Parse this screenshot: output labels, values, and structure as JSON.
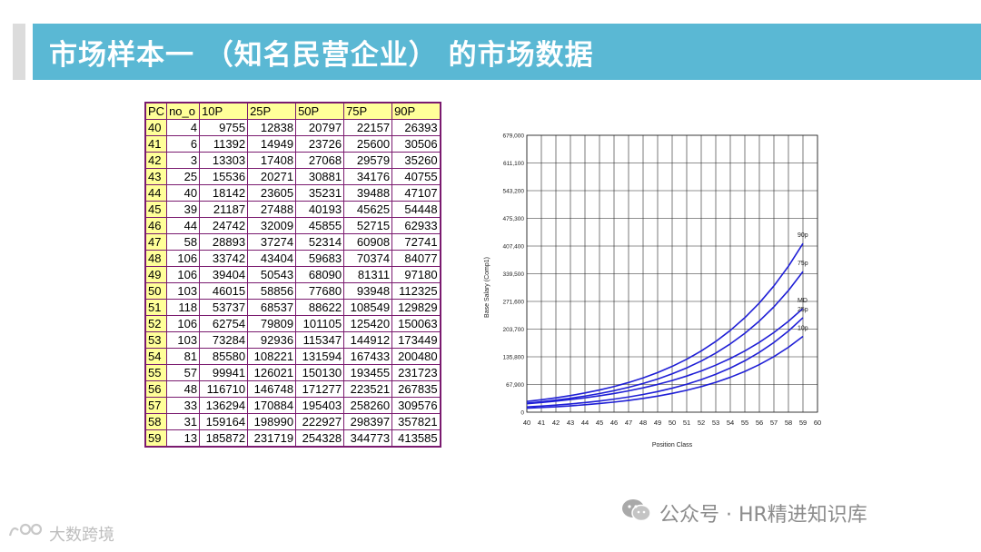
{
  "slide": {
    "title": "市场样本一 （知名民营企业） 的市场数据"
  },
  "table": {
    "headers": [
      "PC",
      "no_o",
      "10P",
      "25P",
      "50P",
      "75P",
      "90P"
    ],
    "rows": [
      [
        "40",
        "4",
        "9755",
        "12838",
        "20797",
        "22157",
        "26393"
      ],
      [
        "41",
        "6",
        "11392",
        "14949",
        "23726",
        "25600",
        "30506"
      ],
      [
        "42",
        "3",
        "13303",
        "17408",
        "27068",
        "29579",
        "35260"
      ],
      [
        "43",
        "25",
        "15536",
        "20271",
        "30881",
        "34176",
        "40755"
      ],
      [
        "44",
        "40",
        "18142",
        "23605",
        "35231",
        "39488",
        "47107"
      ],
      [
        "45",
        "39",
        "21187",
        "27488",
        "40193",
        "45625",
        "54448"
      ],
      [
        "46",
        "44",
        "24742",
        "32009",
        "45855",
        "52715",
        "62933"
      ],
      [
        "47",
        "58",
        "28893",
        "37274",
        "52314",
        "60908",
        "72741"
      ],
      [
        "48",
        "106",
        "33742",
        "43404",
        "59683",
        "70374",
        "84077"
      ],
      [
        "49",
        "106",
        "39404",
        "50543",
        "68090",
        "81311",
        "97180"
      ],
      [
        "50",
        "103",
        "46015",
        "58856",
        "77680",
        "93948",
        "112325"
      ],
      [
        "51",
        "118",
        "53737",
        "68537",
        "88622",
        "108549",
        "129829"
      ],
      [
        "52",
        "106",
        "62754",
        "79809",
        "101105",
        "125420",
        "150063"
      ],
      [
        "53",
        "103",
        "73284",
        "92936",
        "115347",
        "144912",
        "173449"
      ],
      [
        "54",
        "81",
        "85580",
        "108221",
        "131594",
        "167433",
        "200480"
      ],
      [
        "55",
        "57",
        "99941",
        "126021",
        "150130",
        "193455",
        "231723"
      ],
      [
        "56",
        "48",
        "116710",
        "146748",
        "171277",
        "223521",
        "267835"
      ],
      [
        "57",
        "33",
        "136294",
        "170884",
        "195403",
        "258260",
        "309576"
      ],
      [
        "58",
        "31",
        "159164",
        "198990",
        "222927",
        "298397",
        "357821"
      ],
      [
        "59",
        "13",
        "185872",
        "231719",
        "254328",
        "344773",
        "413585"
      ]
    ]
  },
  "chart_data": {
    "type": "line",
    "xlabel": "Position Class",
    "ylabel": "Base Salary (Comp1)",
    "xlim": [
      40,
      60
    ],
    "ylim": [
      0,
      679000
    ],
    "xticks": [
      "40",
      "41",
      "42",
      "43",
      "44",
      "45",
      "46",
      "47",
      "48",
      "49",
      "50",
      "51",
      "52",
      "53",
      "54",
      "55",
      "56",
      "57",
      "58",
      "59",
      "60"
    ],
    "yticks": [
      {
        "value": 0,
        "label": "0"
      },
      {
        "value": 67900,
        "label": "67,900"
      },
      {
        "value": 135800,
        "label": "135,800"
      },
      {
        "value": 203700,
        "label": "203,700"
      },
      {
        "value": 271600,
        "label": "271,600"
      },
      {
        "value": 339500,
        "label": "339,500"
      },
      {
        "value": 407400,
        "label": "407,400"
      },
      {
        "value": 475300,
        "label": "475,300"
      },
      {
        "value": 543200,
        "label": "543,200"
      },
      {
        "value": 611100,
        "label": "611,100"
      },
      {
        "value": 679000,
        "label": "679,000"
      }
    ],
    "grid": true,
    "line_color": "#1f1fd6",
    "x": [
      40,
      41,
      42,
      43,
      44,
      45,
      46,
      47,
      48,
      49,
      50,
      51,
      52,
      53,
      54,
      55,
      56,
      57,
      58,
      59
    ],
    "series": [
      {
        "name": "10p",
        "values": [
          9755,
          11392,
          13303,
          15536,
          18142,
          21187,
          24742,
          28893,
          33742,
          39404,
          46015,
          53737,
          62754,
          73284,
          85580,
          99941,
          116710,
          136294,
          159164,
          185872
        ]
      },
      {
        "name": "25p",
        "values": [
          12838,
          14949,
          17408,
          20271,
          23605,
          27488,
          32009,
          37274,
          43404,
          50543,
          58856,
          68537,
          79809,
          92936,
          108221,
          126021,
          146748,
          170884,
          198990,
          231719
        ]
      },
      {
        "name": "MD",
        "values": [
          20797,
          23726,
          27068,
          30881,
          35231,
          40193,
          45855,
          52314,
          59683,
          68090,
          77680,
          88622,
          101105,
          115347,
          131594,
          150130,
          171277,
          195403,
          222927,
          254328
        ]
      },
      {
        "name": "75p",
        "values": [
          22157,
          25600,
          29579,
          34176,
          39488,
          45625,
          52715,
          60908,
          70374,
          81311,
          93948,
          108549,
          125420,
          144912,
          167433,
          193455,
          223521,
          258260,
          298397,
          344773
        ]
      },
      {
        "name": "90p",
        "values": [
          26393,
          30506,
          35260,
          40755,
          47107,
          54448,
          62933,
          72741,
          84077,
          97180,
          112325,
          129829,
          150063,
          173449,
          200480,
          231723,
          267835,
          309576,
          357821,
          413585
        ]
      }
    ]
  },
  "footer": {
    "wechat_label": "公众号 · HR精进知识库",
    "logo_text": "大数跨境"
  }
}
